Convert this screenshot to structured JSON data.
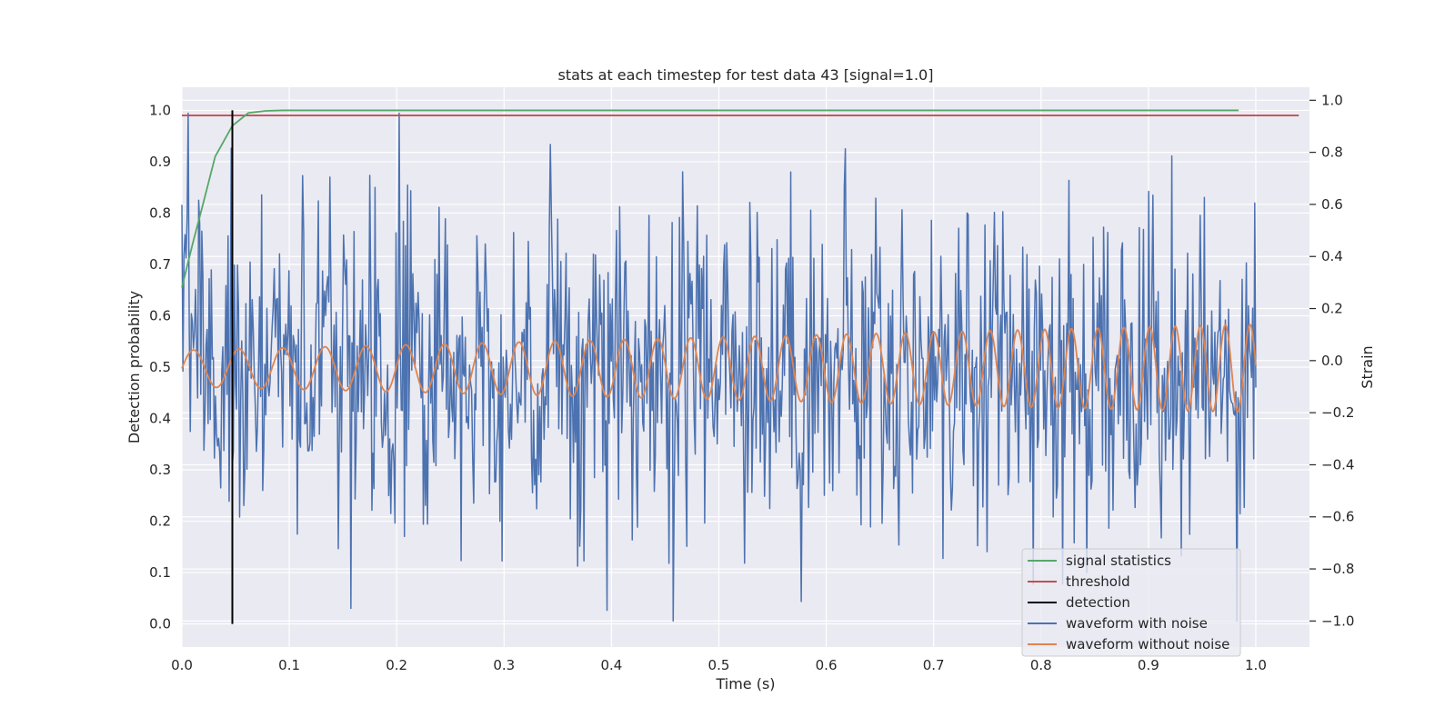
{
  "chart_data": {
    "type": "line",
    "title": "stats at each timestep for test data 43 [signal=1.0]",
    "xlabel": "Time (s)",
    "ylabel": "Detection probability",
    "y2label": "Strain",
    "xlim": [
      0.0,
      1.05
    ],
    "ylim": [
      -0.045,
      1.045
    ],
    "y2lim": [
      -1.1,
      1.05
    ],
    "xticks": [
      0.0,
      0.1,
      0.2,
      0.3,
      0.4,
      0.5,
      0.6,
      0.7,
      0.8,
      0.9,
      1.0
    ],
    "yticks": [
      0.0,
      0.1,
      0.2,
      0.3,
      0.4,
      0.5,
      0.6,
      0.7,
      0.8,
      0.9,
      1.0
    ],
    "y2ticks": [
      -1.0,
      -0.8,
      -0.6,
      -0.4,
      -0.2,
      0.0,
      0.2,
      0.4,
      0.6,
      0.8,
      1.0
    ],
    "grid": true,
    "legend_position": "lower-right",
    "legend": [
      {
        "label": "signal statistics",
        "color": "#55a868"
      },
      {
        "label": "threshold",
        "color": "#c44e52"
      },
      {
        "label": "detection",
        "color": "#000000"
      },
      {
        "label": "waveform with noise",
        "color": "#4c72b0"
      },
      {
        "label": "waveform without noise",
        "color": "#dd8452"
      }
    ],
    "signal_statistics": {
      "axis": "left",
      "color": "#55a868",
      "x": [
        0.0,
        0.01,
        0.02,
        0.031,
        0.047,
        0.062,
        0.078,
        0.094,
        0.2,
        0.4,
        0.6,
        0.8,
        0.984
      ],
      "y": [
        0.655,
        0.74,
        0.82,
        0.91,
        0.97,
        0.995,
        0.999,
        1.0,
        1.0,
        1.0,
        1.0,
        1.0,
        1.0
      ]
    },
    "threshold": {
      "axis": "left",
      "color": "#c44e52",
      "y": 0.99,
      "x": [
        0.0,
        1.04
      ]
    },
    "detection": {
      "axis": "left",
      "color": "#000000",
      "x": 0.047,
      "y": [
        0.0,
        1.0
      ]
    },
    "waveform_without_noise": {
      "axis": "right",
      "color": "#dd8452",
      "x_start": 0.0,
      "x_end": 1.0,
      "description_values": {
        "amplitude_start": 0.07,
        "amplitude_end": 0.17,
        "frequency_start_hz": 23,
        "frequency_end_hz": 44,
        "offset": -0.03
      }
    },
    "waveform_with_noise": {
      "axis": "right",
      "color": "#4c72b0",
      "x_start": 0.0,
      "x_end": 1.0,
      "noise_std": 0.3,
      "ymin": -1.0,
      "ymax": 0.95,
      "peaks": [
        {
          "x": 0.202,
          "y": 0.95
        },
        {
          "x": 0.457,
          "y": -1.0
        },
        {
          "x": 0.343,
          "y": 0.83
        },
        {
          "x": 0.931,
          "y": -0.75
        },
        {
          "x": 0.831,
          "y": -0.7
        }
      ]
    }
  }
}
